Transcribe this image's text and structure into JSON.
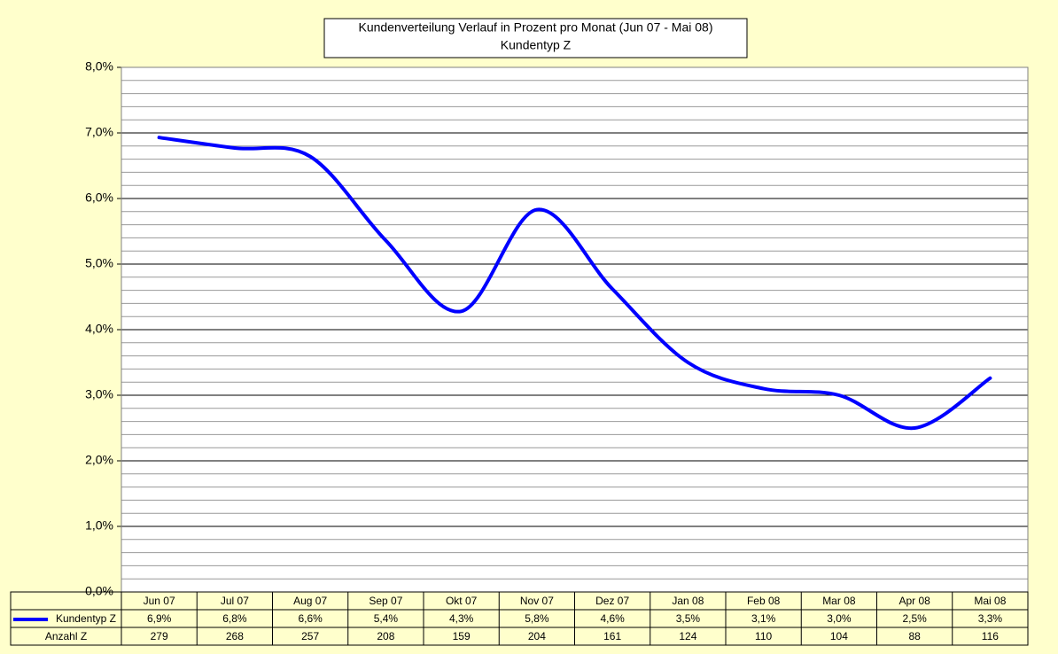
{
  "chart_data": {
    "type": "line",
    "title": [
      "Kundenverteilung Verlauf in Prozent pro Monat (Jun 07 - Mai 08)",
      "Kundentyp Z"
    ],
    "categories": [
      "Jun 07",
      "Jul 07",
      "Aug 07",
      "Sep 07",
      "Okt 07",
      "Nov 07",
      "Dez 07",
      "Jan 08",
      "Feb 08",
      "Mar 08",
      "Apr 08",
      "Mai 08"
    ],
    "series": [
      {
        "name": "Kundentyp Z",
        "color": "#0000ff",
        "values": [
          6.93,
          6.77,
          6.64,
          5.36,
          4.28,
          5.83,
          4.62,
          3.5,
          3.1,
          3.0,
          2.5,
          3.26
        ],
        "value_labels": [
          "6,9%",
          "6,8%",
          "6,6%",
          "5,4%",
          "4,3%",
          "5,8%",
          "4,6%",
          "3,5%",
          "3,1%",
          "3,0%",
          "2,5%",
          "3,3%"
        ]
      }
    ],
    "table_rows": [
      {
        "name": "Anzahl Z",
        "values": [
          279,
          268,
          257,
          208,
          159,
          204,
          161,
          124,
          110,
          104,
          88,
          116
        ]
      }
    ],
    "ylim": [
      0,
      8
    ],
    "yticks": [
      {
        "value": 0,
        "label": "0,0%"
      },
      {
        "value": 1,
        "label": "1,0%"
      },
      {
        "value": 2,
        "label": "2,0%"
      },
      {
        "value": 3,
        "label": "3,0%"
      },
      {
        "value": 4,
        "label": "4,0%"
      },
      {
        "value": 5,
        "label": "5,0%"
      },
      {
        "value": 6,
        "label": "6,0%"
      },
      {
        "value": 7,
        "label": "7,0%"
      },
      {
        "value": 8,
        "label": "8,0%"
      }
    ],
    "grid": true,
    "minor_grid_step": 0.2,
    "smooth": true
  }
}
